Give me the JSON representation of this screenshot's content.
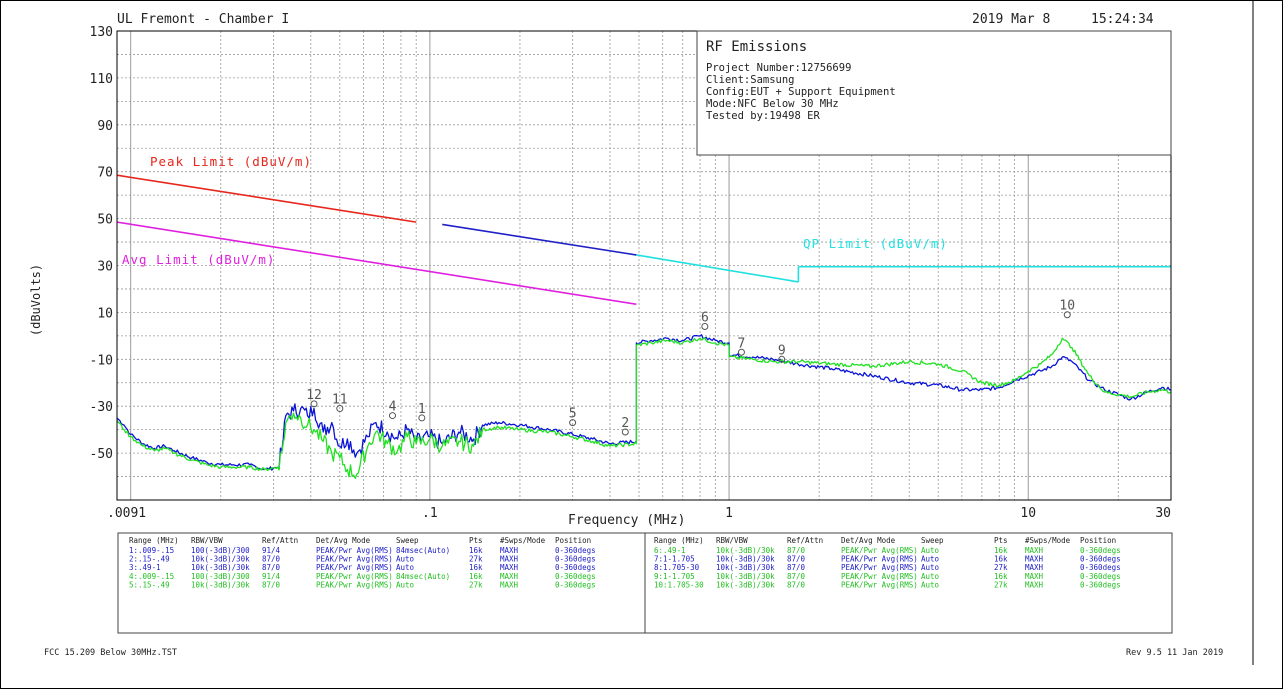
{
  "header": {
    "left": "UL Fremont - Chamber I",
    "date": "2019 Mar 8",
    "time": "15:24:34"
  },
  "info_box": {
    "title": "RF Emissions",
    "lines": [
      "Project Number:12756699",
      "Client:Samsung",
      "Config:EUT + Support Equipment",
      "Mode:NFC Below 30 MHz",
      "Tested by:19498 ER"
    ]
  },
  "footer": {
    "left": "FCC 15.209 Below 30MHz.TST",
    "right": "Rev 9.5 11 Jan 2019"
  },
  "colors": {
    "peak_limit": "#e8261b",
    "peak_limit_2": "#2020c8",
    "avg_limit": "#e020e0",
    "qp_limit": "#20e0e0",
    "trace_blue": "#0a14d6",
    "trace_green": "#22e022",
    "table_blue": "#2020c8",
    "table_green": "#22c022",
    "grid": "#9a9a9a",
    "marker": "#555555"
  },
  "settings_table": {
    "columns_left": [
      "Range (MHz)",
      "RBW/VBW",
      "Ref/Attn",
      "Det/Avg Mode",
      "Sweep",
      "Pts",
      "#Swps/Mode",
      "Position"
    ],
    "rows_left": [
      {
        "color": "blue",
        "cells": [
          "1:.009-.15",
          "100(-3dB)/300",
          "91/4",
          "PEAK/Pwr Avg(RMS)",
          "84msec(Auto)",
          "16k",
          "MAXH",
          "0-360degs"
        ]
      },
      {
        "color": "blue",
        "cells": [
          "2:.15-.49",
          "10k(-3dB)/30k",
          "87/0",
          "PEAK/Pwr Avg(RMS)",
          "Auto",
          "27k",
          "MAXH",
          "0-360degs"
        ]
      },
      {
        "color": "blue",
        "cells": [
          "3:.49-1",
          "10k(-3dB)/30k",
          "87/0",
          "PEAK/Pwr Avg(RMS)",
          "Auto",
          "16k",
          "MAXH",
          "0-360degs"
        ]
      },
      {
        "color": "green",
        "cells": [
          "4:.009-.15",
          "100(-3dB)/300",
          "91/4",
          "PEAK/Pwr Avg(RMS)",
          "84msec(Auto)",
          "16k",
          "MAXH",
          "0-360degs"
        ]
      },
      {
        "color": "green",
        "cells": [
          "5:.15-.49",
          "10k(-3dB)/30k",
          "87/0",
          "PEAK/Pwr Avg(RMS)",
          "Auto",
          "27k",
          "MAXH",
          "0-360degs"
        ]
      }
    ],
    "columns_right": [
      "Range (MHz)",
      "RBW/VBW",
      "Ref/Attn",
      "Det/Avg Mode",
      "Sweep",
      "Pts",
      "#Swps/Mode",
      "Position"
    ],
    "rows_right": [
      {
        "color": "green",
        "cells": [
          "6:.49-1",
          "10k(-3dB)/30k",
          "87/0",
          "PEAK/Pwr Avg(RMS)",
          "Auto",
          "16k",
          "MAXH",
          "0-360degs"
        ]
      },
      {
        "color": "blue",
        "cells": [
          "7:1-1.705",
          "10k(-3dB)/30k",
          "87/0",
          "PEAK/Pwr Avg(RMS)",
          "Auto",
          "16k",
          "MAXH",
          "0-360degs"
        ]
      },
      {
        "color": "blue",
        "cells": [
          "8:1.705-30",
          "10k(-3dB)/30k",
          "87/0",
          "PEAK/Pwr Avg(RMS)",
          "Auto",
          "27k",
          "MAXH",
          "0-360degs"
        ]
      },
      {
        "color": "green",
        "cells": [
          "9:1-1.705",
          "10k(-3dB)/30k",
          "87/0",
          "PEAK/Pwr Avg(RMS)",
          "Auto",
          "16k",
          "MAXH",
          "0-360degs"
        ]
      },
      {
        "color": "green",
        "cells": [
          "10:1.705-30",
          "10k(-3dB)/30k",
          "87/0",
          "PEAK/Pwr Avg(RMS)",
          "Auto",
          "27k",
          "MAXH",
          "0-360degs"
        ]
      }
    ]
  },
  "chart_data": {
    "type": "line",
    "x_scale": "log",
    "xlim": [
      0.009,
      30
    ],
    "ylim": [
      -70,
      130
    ],
    "grid": true,
    "xlabel": "Frequency (MHz)",
    "ylabel": "(dBuVolts)",
    "x_ticks": [
      {
        "value": 0.009,
        "label": ".0091"
      },
      {
        "value": 0.1,
        "label": ".1"
      },
      {
        "value": 1,
        "label": "1"
      },
      {
        "value": 10,
        "label": "10"
      },
      {
        "value": 30,
        "label": "30"
      }
    ],
    "y_ticks": [
      130,
      110,
      90,
      70,
      50,
      30,
      10,
      -10,
      -30,
      -50
    ],
    "limit_lines": [
      {
        "name": "Peak Limit (dBuV/m)",
        "color_key": "peak_limit",
        "segments": [
          {
            "x": [
              0.009,
              0.09
            ],
            "y": [
              68.5,
              48.5
            ]
          }
        ]
      },
      {
        "name": "",
        "color_key": "peak_limit_2",
        "segments": [
          {
            "x": [
              0.11,
              0.49
            ],
            "y": [
              47.5,
              34.5
            ]
          }
        ]
      },
      {
        "name": "Avg Limit (dBuV/m)",
        "color_key": "avg_limit",
        "segments": [
          {
            "x": [
              0.009,
              0.49
            ],
            "y": [
              48.5,
              13.5
            ]
          }
        ]
      },
      {
        "name": "QP Limit (dBuV/m)",
        "color_key": "qp_limit",
        "segments": [
          {
            "x": [
              0.49,
              1.705
            ],
            "y": [
              34.5,
              23
            ]
          },
          {
            "x": [
              1.705,
              1.705
            ],
            "y": [
              23,
              29.5
            ]
          },
          {
            "x": [
              1.705,
              30
            ],
            "y": [
              29.5,
              29.5
            ]
          }
        ]
      }
    ],
    "series": [
      {
        "color_key": "trace_blue",
        "points": [
          [
            0.009,
            -35
          ],
          [
            0.0095,
            -38
          ],
          [
            0.01,
            -42
          ],
          [
            0.011,
            -46
          ],
          [
            0.012,
            -48
          ],
          [
            0.013,
            -47
          ],
          [
            0.014,
            -49
          ],
          [
            0.016,
            -52
          ],
          [
            0.018,
            -54
          ],
          [
            0.02,
            -55
          ],
          [
            0.022,
            -55
          ],
          [
            0.025,
            -55
          ],
          [
            0.028,
            -57
          ],
          [
            0.031,
            -56
          ],
          [
            0.032,
            -49
          ],
          [
            0.033,
            -34
          ],
          [
            0.035,
            -32
          ],
          [
            0.037,
            -31
          ],
          [
            0.039,
            -34
          ],
          [
            0.041,
            -31
          ],
          [
            0.044,
            -41
          ],
          [
            0.047,
            -37
          ],
          [
            0.05,
            -47
          ],
          [
            0.053,
            -44
          ],
          [
            0.057,
            -50
          ],
          [
            0.062,
            -43
          ],
          [
            0.066,
            -37
          ],
          [
            0.072,
            -41
          ],
          [
            0.078,
            -44
          ],
          [
            0.084,
            -40
          ],
          [
            0.09,
            -45
          ],
          [
            0.1,
            -43
          ],
          [
            0.11,
            -46
          ],
          [
            0.125,
            -41
          ],
          [
            0.14,
            -44
          ],
          [
            0.15,
            -38
          ],
          [
            0.17,
            -37
          ],
          [
            0.2,
            -38
          ],
          [
            0.25,
            -40
          ],
          [
            0.3,
            -42
          ],
          [
            0.35,
            -44
          ],
          [
            0.4,
            -46
          ],
          [
            0.49,
            -45
          ],
          [
            0.49,
            -3
          ],
          [
            0.55,
            -2
          ],
          [
            0.62,
            -1
          ],
          [
            0.7,
            -2
          ],
          [
            0.8,
            0
          ],
          [
            0.9,
            -2
          ],
          [
            1.0,
            -3
          ],
          [
            1.0,
            -8
          ],
          [
            1.2,
            -9
          ],
          [
            1.4,
            -10
          ],
          [
            1.7,
            -12
          ],
          [
            2.2,
            -14
          ],
          [
            3,
            -17
          ],
          [
            4,
            -20
          ],
          [
            5,
            -21
          ],
          [
            6,
            -23
          ],
          [
            7,
            -23
          ],
          [
            8,
            -22
          ],
          [
            9,
            -19
          ],
          [
            10,
            -17
          ],
          [
            11,
            -15
          ],
          [
            12,
            -13
          ],
          [
            13,
            -9
          ],
          [
            14,
            -11
          ],
          [
            16,
            -19
          ],
          [
            18,
            -23
          ],
          [
            20,
            -25
          ],
          [
            22,
            -27
          ],
          [
            25,
            -24
          ],
          [
            28,
            -22
          ],
          [
            30,
            -23
          ]
        ]
      },
      {
        "color_key": "trace_green",
        "points": [
          [
            0.009,
            -36
          ],
          [
            0.0095,
            -40
          ],
          [
            0.01,
            -43
          ],
          [
            0.011,
            -47
          ],
          [
            0.012,
            -49
          ],
          [
            0.013,
            -48
          ],
          [
            0.014,
            -50
          ],
          [
            0.016,
            -53
          ],
          [
            0.018,
            -55
          ],
          [
            0.02,
            -56
          ],
          [
            0.022,
            -56
          ],
          [
            0.025,
            -56
          ],
          [
            0.028,
            -57
          ],
          [
            0.031,
            -56
          ],
          [
            0.032,
            -50
          ],
          [
            0.033,
            -37
          ],
          [
            0.035,
            -33
          ],
          [
            0.037,
            -35
          ],
          [
            0.039,
            -38
          ],
          [
            0.041,
            -40
          ],
          [
            0.044,
            -45
          ],
          [
            0.047,
            -50
          ],
          [
            0.05,
            -52
          ],
          [
            0.053,
            -57
          ],
          [
            0.057,
            -59
          ],
          [
            0.062,
            -47
          ],
          [
            0.066,
            -41
          ],
          [
            0.072,
            -46
          ],
          [
            0.078,
            -49
          ],
          [
            0.084,
            -43
          ],
          [
            0.09,
            -46
          ],
          [
            0.1,
            -44
          ],
          [
            0.11,
            -47
          ],
          [
            0.125,
            -45
          ],
          [
            0.14,
            -47
          ],
          [
            0.15,
            -40
          ],
          [
            0.17,
            -39
          ],
          [
            0.2,
            -40
          ],
          [
            0.25,
            -41
          ],
          [
            0.3,
            -43
          ],
          [
            0.35,
            -45
          ],
          [
            0.4,
            -47
          ],
          [
            0.49,
            -46
          ],
          [
            0.49,
            -4
          ],
          [
            0.55,
            -3
          ],
          [
            0.62,
            -2
          ],
          [
            0.7,
            -3
          ],
          [
            0.8,
            -1
          ],
          [
            0.9,
            -3
          ],
          [
            1.0,
            -4
          ],
          [
            1.0,
            -9
          ],
          [
            1.2,
            -10
          ],
          [
            1.4,
            -11
          ],
          [
            1.7,
            -11
          ],
          [
            2.2,
            -12
          ],
          [
            3,
            -13
          ],
          [
            4,
            -11
          ],
          [
            5,
            -12
          ],
          [
            6,
            -15
          ],
          [
            7,
            -20
          ],
          [
            8,
            -21
          ],
          [
            9,
            -19
          ],
          [
            10,
            -15
          ],
          [
            11,
            -12
          ],
          [
            12,
            -8
          ],
          [
            13,
            -1
          ],
          [
            14,
            -5
          ],
          [
            16,
            -17
          ],
          [
            18,
            -24
          ],
          [
            20,
            -25
          ],
          [
            22,
            -26
          ],
          [
            25,
            -24
          ],
          [
            28,
            -23
          ],
          [
            30,
            -24
          ]
        ]
      }
    ],
    "markers": [
      {
        "label": "12",
        "x": 0.041,
        "y": -29
      },
      {
        "label": "11",
        "x": 0.05,
        "y": -31
      },
      {
        "label": "4",
        "x": 0.075,
        "y": -34
      },
      {
        "label": "1",
        "x": 0.094,
        "y": -35
      },
      {
        "label": "5",
        "x": 0.3,
        "y": -37
      },
      {
        "label": "2",
        "x": 0.45,
        "y": -41
      },
      {
        "label": "6",
        "x": 0.83,
        "y": 4
      },
      {
        "label": "7",
        "x": 1.1,
        "y": -7
      },
      {
        "label": "9",
        "x": 1.5,
        "y": -10
      },
      {
        "label": "10",
        "x": 13.5,
        "y": 9
      }
    ]
  }
}
